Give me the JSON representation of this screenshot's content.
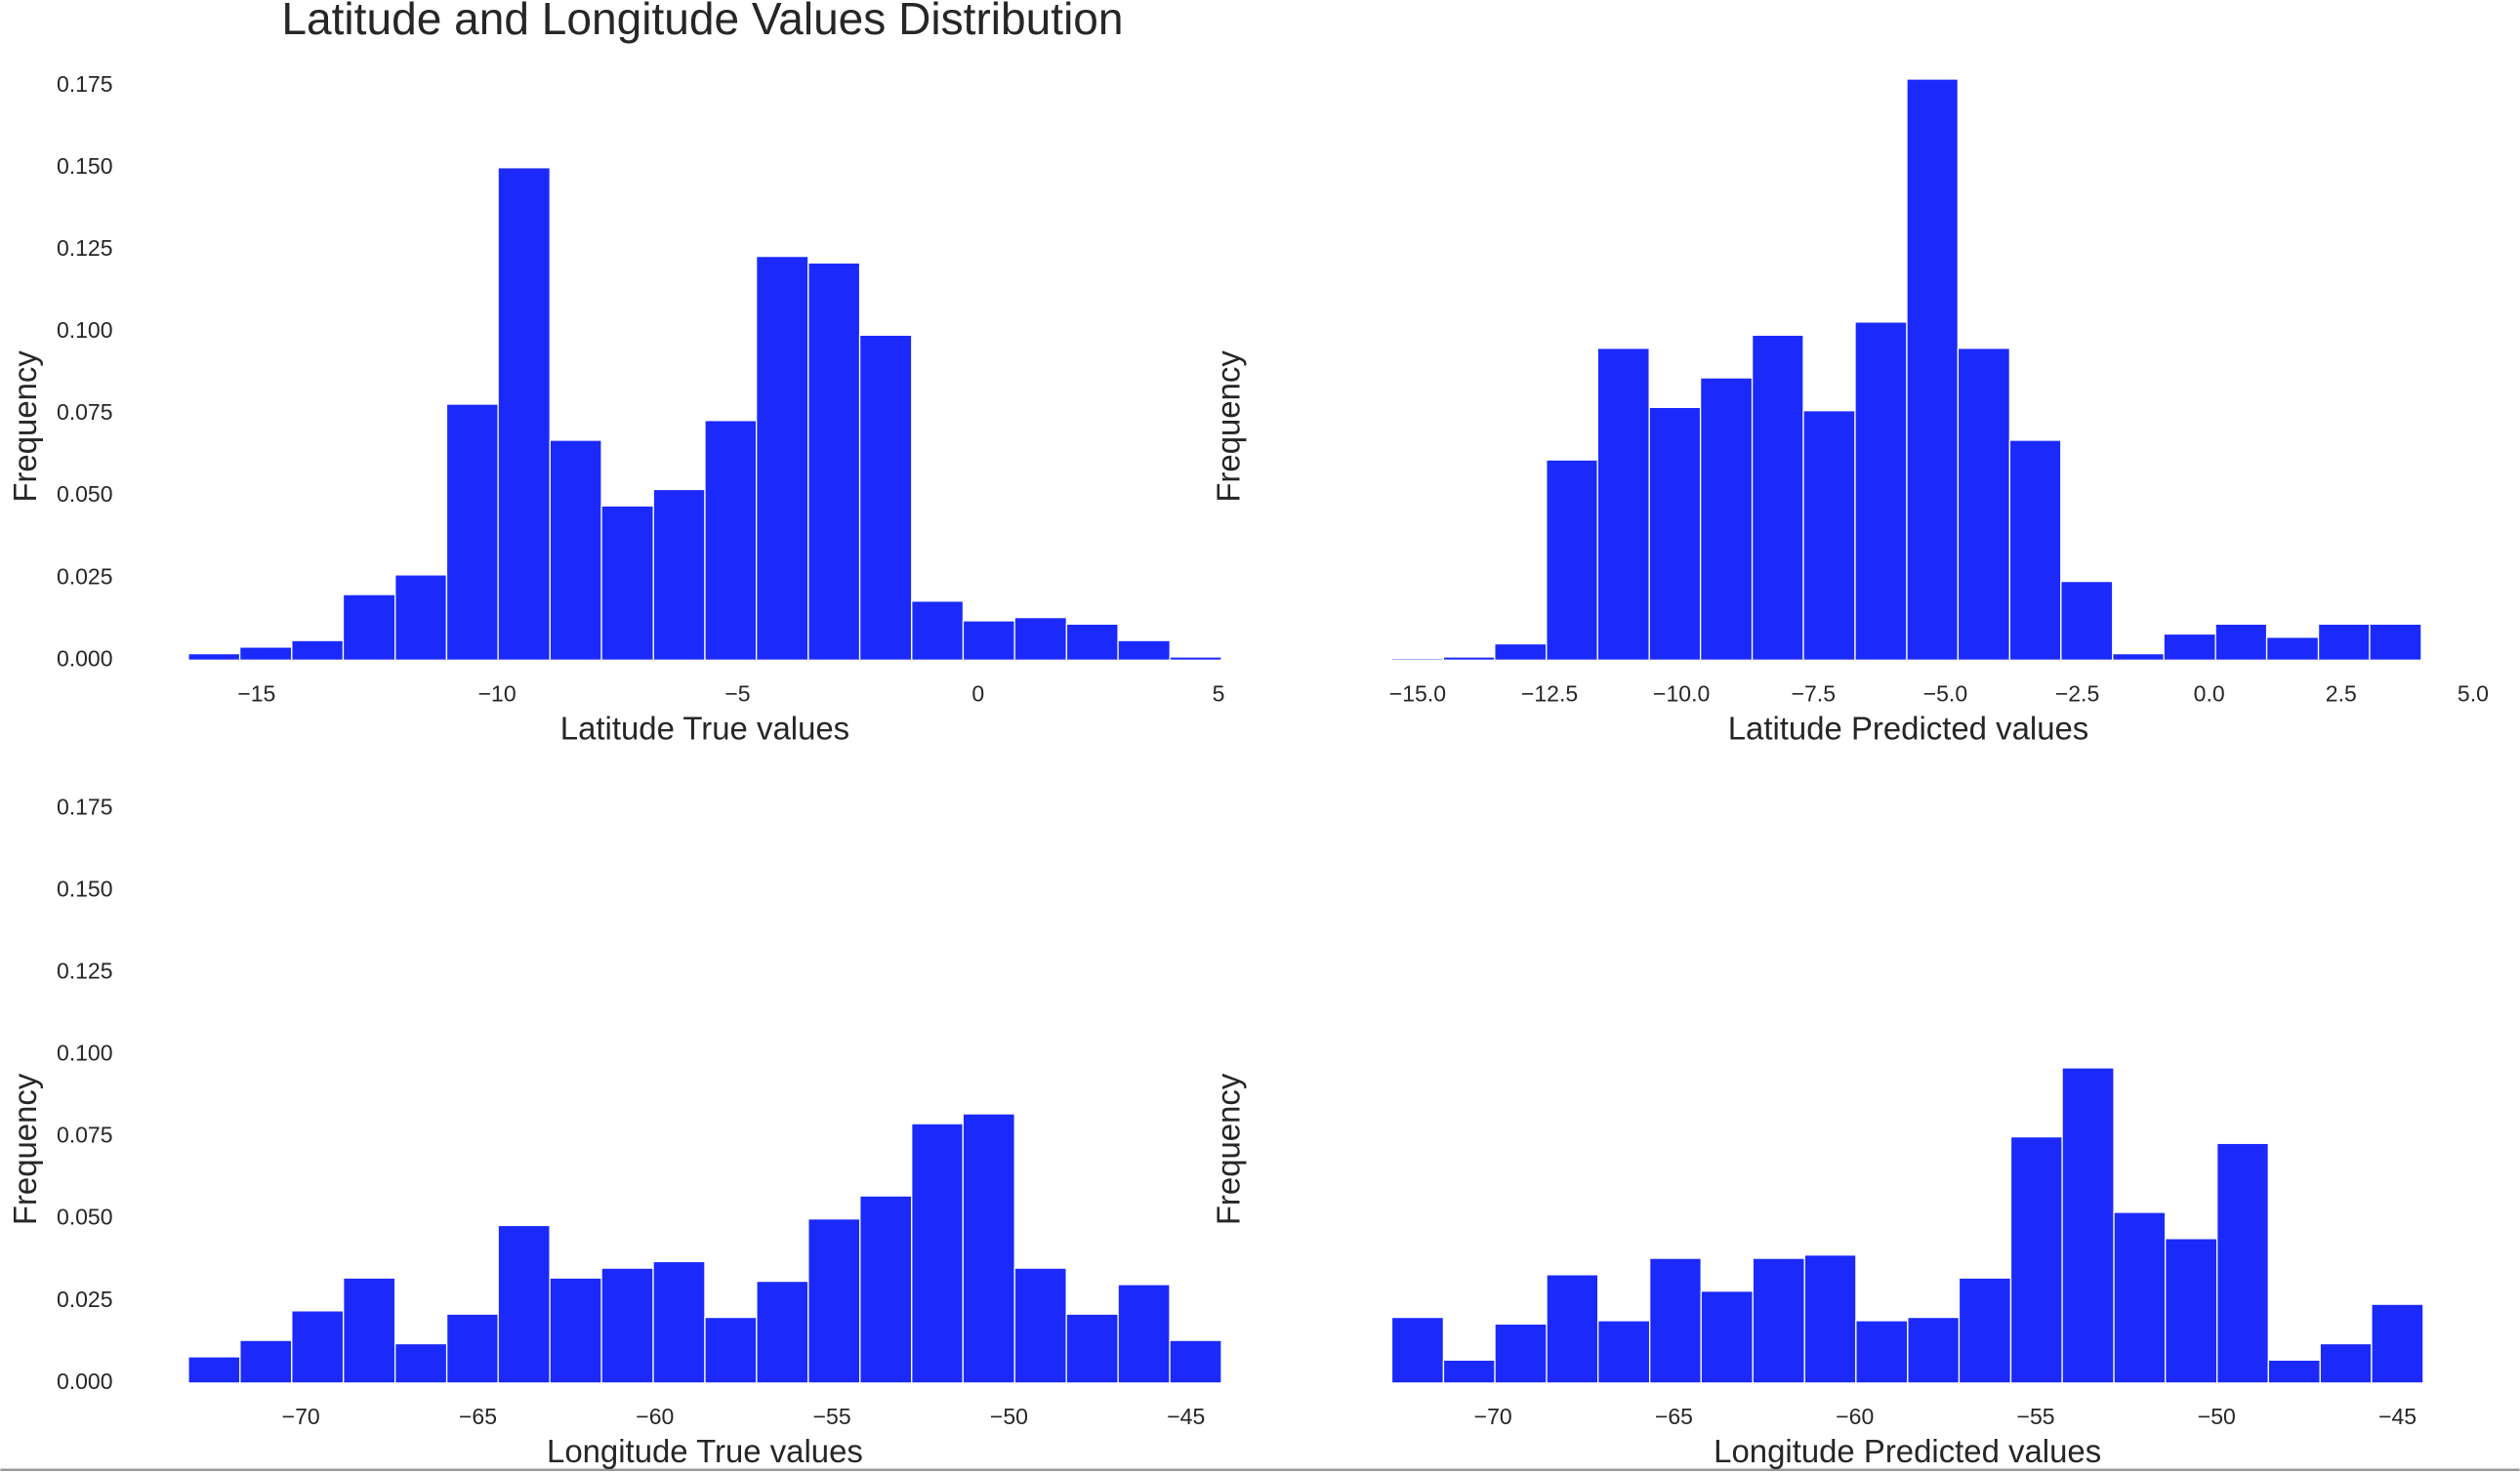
{
  "title": "Latitude and Longitude Values Distribution",
  "chart_data": [
    {
      "type": "histogram",
      "xlabel": "Latitude True values",
      "ylabel": "Frequency",
      "color": "#1b2afb",
      "bins": [
        -16.42,
        -15.35,
        -14.27,
        -13.2,
        -12.12,
        -11.05,
        -9.98,
        -8.9,
        -7.83,
        -6.75,
        -5.68,
        -4.61,
        -3.53,
        -2.46,
        -1.38,
        -0.31,
        0.76,
        1.84,
        2.91,
        3.99,
        5.06
      ],
      "values": [
        0.002,
        0.004,
        0.006,
        0.02,
        0.026,
        0.078,
        0.15,
        0.067,
        0.047,
        0.052,
        0.073,
        0.123,
        0.121,
        0.099,
        0.018,
        0.012,
        0.013,
        0.011,
        0.006,
        0.001
      ],
      "xlim": [
        -16.42,
        5.06
      ],
      "ylim": [
        0,
        0.1815
      ],
      "xticks": [
        {
          "value": -15,
          "label": "−15"
        },
        {
          "value": -10,
          "label": "−10"
        },
        {
          "value": -5,
          "label": "−5"
        },
        0,
        5
      ],
      "yticks": [
        {
          "value": 0,
          "label": "0.000"
        },
        {
          "value": 0.025,
          "label": "0.025"
        },
        {
          "value": 0.05,
          "label": "0.050"
        },
        {
          "value": 0.075,
          "label": "0.075"
        },
        {
          "value": 0.1,
          "label": "0.100"
        },
        {
          "value": 0.125,
          "label": "0.125"
        },
        {
          "value": 0.15,
          "label": "0.150"
        },
        {
          "value": 0.175,
          "label": "0.175"
        }
      ]
    },
    {
      "type": "histogram",
      "xlabel": "Latitude Predicted values",
      "ylabel": "Frequency",
      "color": "#1b2afb",
      "bins": [
        -15.49,
        -14.51,
        -13.54,
        -12.56,
        -11.59,
        -10.61,
        -9.64,
        -8.66,
        -7.69,
        -6.71,
        -5.73,
        -4.76,
        -3.78,
        -2.81,
        -1.83,
        -0.86,
        0.12,
        1.09,
        2.07,
        3.04,
        4.02
      ],
      "values": [
        0.0005,
        0.001,
        0.005,
        0.061,
        0.095,
        0.077,
        0.086,
        0.099,
        0.076,
        0.103,
        0.177,
        0.095,
        0.067,
        0.024,
        0.002,
        0.008,
        0.011,
        0.007,
        0.011,
        0.011
      ],
      "xlim": [
        -15.49,
        5.0
      ],
      "ylim": [
        0,
        0.1815
      ],
      "xticks": [
        {
          "value": -15,
          "label": "−15.0"
        },
        {
          "value": -12.5,
          "label": "−12.5"
        },
        {
          "value": -10,
          "label": "−10.0"
        },
        {
          "value": -7.5,
          "label": "−7.5"
        },
        {
          "value": -5,
          "label": "−5.0"
        },
        {
          "value": -2.5,
          "label": "−2.5"
        },
        {
          "value": 0,
          "label": "0.0"
        },
        2.5,
        {
          "value": 5,
          "label": "5.0"
        }
      ]
    },
    {
      "type": "histogram",
      "xlabel": "Longitude True values",
      "ylabel": "Frequency",
      "color": "#1b2afb",
      "bins": [
        -73.18,
        -71.72,
        -70.26,
        -68.8,
        -67.34,
        -65.88,
        -64.43,
        -62.97,
        -61.51,
        -60.05,
        -58.59,
        -57.13,
        -55.67,
        -54.21,
        -52.75,
        -51.3,
        -49.84,
        -48.38,
        -46.92,
        -45.46,
        -44.0
      ],
      "values": [
        0.008,
        0.013,
        0.022,
        0.032,
        0.012,
        0.021,
        0.048,
        0.032,
        0.035,
        0.037,
        0.02,
        0.031,
        0.05,
        0.057,
        0.079,
        0.082,
        0.035,
        0.021,
        0.03,
        0.013
      ],
      "xlim": [
        -73.18,
        -44.0
      ],
      "ylim": [
        0,
        0.1815
      ],
      "xticks": [
        {
          "value": -70,
          "label": "−70"
        },
        {
          "value": -65,
          "label": "−65"
        },
        {
          "value": -60,
          "label": "−60"
        },
        {
          "value": -55,
          "label": "−55"
        },
        {
          "value": -50,
          "label": "−50"
        },
        {
          "value": -45,
          "label": "−45"
        }
      ],
      "yticks": [
        {
          "value": 0,
          "label": "0.000"
        },
        {
          "value": 0.025,
          "label": "0.025"
        },
        {
          "value": 0.05,
          "label": "0.050"
        },
        {
          "value": 0.075,
          "label": "0.075"
        },
        {
          "value": 0.1,
          "label": "0.100"
        },
        {
          "value": 0.125,
          "label": "0.125"
        },
        {
          "value": 0.15,
          "label": "0.150"
        },
        {
          "value": 0.175,
          "label": "0.175"
        }
      ]
    },
    {
      "type": "histogram",
      "xlabel": "Longitude Predicted values",
      "ylabel": "Frequency",
      "color": "#1b2afb",
      "bins": [
        -72.8,
        -71.37,
        -69.95,
        -68.52,
        -67.1,
        -65.67,
        -64.25,
        -62.82,
        -61.39,
        -59.97,
        -58.54,
        -57.12,
        -55.69,
        -54.27,
        -52.84,
        -51.42,
        -49.99,
        -48.57,
        -47.14,
        -45.72,
        -44.29
      ],
      "values": [
        0.02,
        0.007,
        0.018,
        0.033,
        0.019,
        0.038,
        0.028,
        0.038,
        0.039,
        0.019,
        0.02,
        0.032,
        0.075,
        0.096,
        0.052,
        0.044,
        0.073,
        0.007,
        0.012,
        0.024
      ],
      "xlim": [
        -72.8,
        -44.29
      ],
      "ylim": [
        0,
        0.1815
      ],
      "xticks": [
        {
          "value": -70,
          "label": "−70"
        },
        {
          "value": -65,
          "label": "−65"
        },
        {
          "value": -60,
          "label": "−60"
        },
        {
          "value": -55,
          "label": "−55"
        },
        {
          "value": -50,
          "label": "−50"
        },
        {
          "value": -45,
          "label": "−45"
        }
      ]
    }
  ]
}
